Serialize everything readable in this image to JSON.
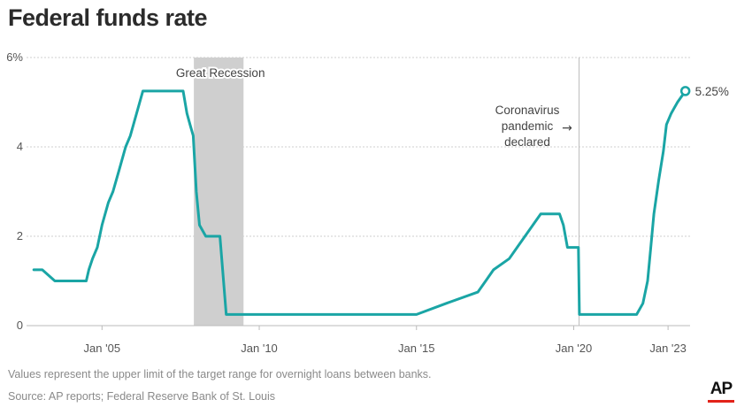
{
  "title": "Federal funds rate",
  "note": "Values represent the upper limit of the target range for overnight loans between banks.",
  "source": "Source: AP reports; Federal Reserve Bank of St. Louis",
  "logo": "AP",
  "colors": {
    "line": "#1aa5a5",
    "recession": "#cfcfcf",
    "grid": "#cfcfcf",
    "text": "#555555",
    "logo_bar": "#e2231a"
  },
  "chart_data": {
    "type": "line",
    "title": "Federal funds rate",
    "xlabel": "",
    "ylabel": "",
    "ylim": [
      0,
      6
    ],
    "xlim": [
      2002.6,
      2023.7
    ],
    "y_ticks": [
      {
        "value": 6,
        "label": "6%"
      },
      {
        "value": 4,
        "label": "4"
      },
      {
        "value": 2,
        "label": "2"
      },
      {
        "value": 0,
        "label": "0"
      }
    ],
    "x_ticks": [
      {
        "value": 2005,
        "label": "Jan '05"
      },
      {
        "value": 2010,
        "label": "Jan '10"
      },
      {
        "value": 2015,
        "label": "Jan '15"
      },
      {
        "value": 2020,
        "label": "Jan '20"
      },
      {
        "value": 2023,
        "label": "Jan '23"
      }
    ],
    "grid": true,
    "series": [
      {
        "x": [
          2002.83,
          2002.9,
          2003.1,
          2003.5,
          2004.0,
          2004.5,
          2004.58,
          2004.7,
          2004.85,
          2005.0,
          2005.2,
          2005.35,
          2005.55,
          2005.75,
          2005.9,
          2006.1,
          2006.3,
          2006.5,
          2007.0,
          2007.58,
          2007.7,
          2007.8,
          2007.9,
          2008.0,
          2008.1,
          2008.3,
          2008.75,
          2008.95,
          2009.5,
          2010,
          2011,
          2012,
          2013,
          2014,
          2015,
          2015.95,
          2016.95,
          2017.2,
          2017.45,
          2017.95,
          2018.2,
          2018.45,
          2018.7,
          2018.95,
          2019.55,
          2019.67,
          2019.8,
          2020.15,
          2020.18,
          2020.5,
          2021,
          2022.0,
          2022.2,
          2022.35,
          2022.45,
          2022.55,
          2022.7,
          2022.85,
          2022.95,
          2023.1,
          2023.3,
          2023.55
        ],
        "y": [
          1.25,
          1.25,
          1.25,
          1.0,
          1.0,
          1.0,
          1.25,
          1.5,
          1.75,
          2.25,
          2.75,
          3.0,
          3.5,
          4.0,
          4.25,
          4.75,
          5.25,
          5.25,
          5.25,
          5.25,
          4.75,
          4.5,
          4.25,
          3.0,
          2.25,
          2.0,
          2.0,
          0.25,
          0.25,
          0.25,
          0.25,
          0.25,
          0.25,
          0.25,
          0.25,
          0.5,
          0.75,
          1.0,
          1.25,
          1.5,
          1.75,
          2.0,
          2.25,
          2.5,
          2.5,
          2.25,
          1.75,
          1.75,
          0.25,
          0.25,
          0.25,
          0.25,
          0.5,
          1.0,
          1.75,
          2.5,
          3.25,
          3.9,
          4.5,
          4.75,
          5.0,
          5.25
        ]
      }
    ],
    "shaded_ranges": [
      {
        "start": 2007.92,
        "end": 2009.5,
        "label": "Great Recession"
      }
    ],
    "annotations": [
      {
        "x": 2020.17,
        "lines": [
          "Coronavirus",
          "pandemic",
          "declared"
        ],
        "arrow": "→"
      },
      {
        "x": 2023.55,
        "y": 5.25,
        "label": "5.25%"
      }
    ]
  }
}
